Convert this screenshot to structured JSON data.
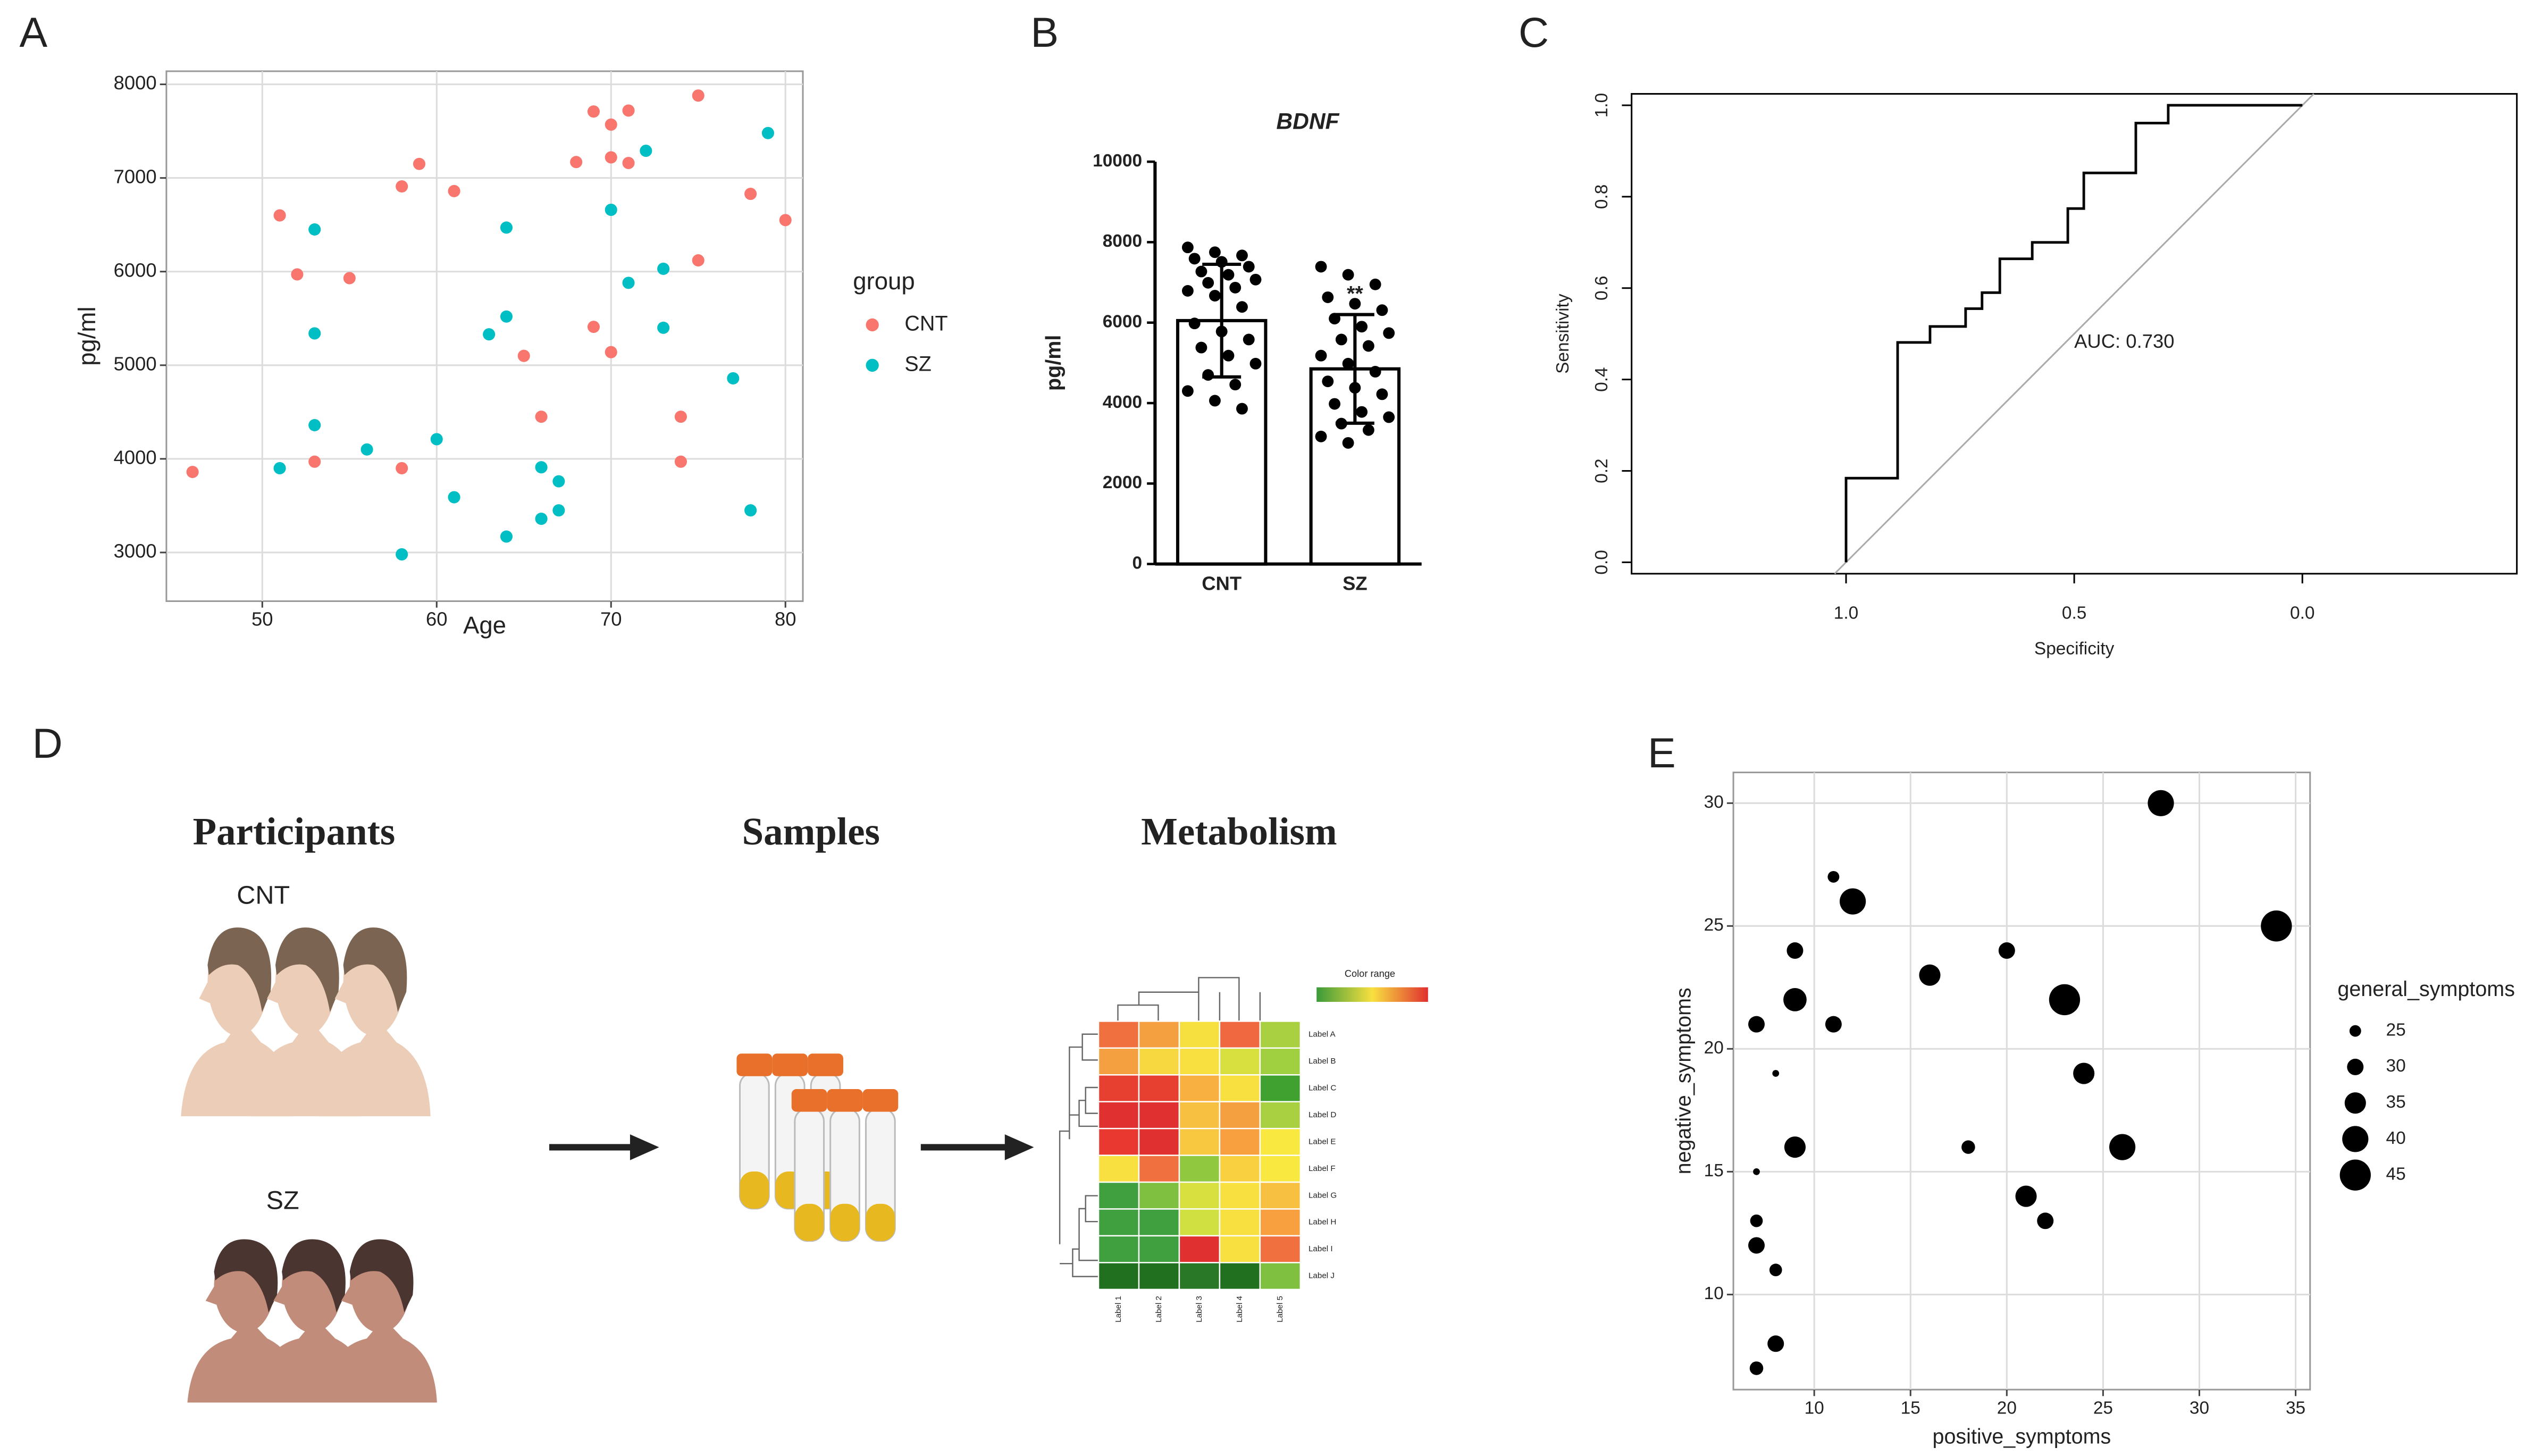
{
  "chart_data": [
    {
      "panel": "A",
      "type": "scatter",
      "xlabel": "Age",
      "ylabel": "pg/ml",
      "xlim": [
        44.5,
        81
      ],
      "ylim": [
        2480,
        8140
      ],
      "xticks": [
        50,
        60,
        70,
        80
      ],
      "yticks": [
        3000,
        4000,
        5000,
        6000,
        7000,
        8000
      ],
      "grid": true,
      "legend_title": "group",
      "series": [
        {
          "name": "CNT",
          "color": "#F8766D",
          "x": [
            46,
            51,
            52,
            53,
            55,
            58,
            58,
            59,
            61,
            65,
            66,
            68,
            69,
            69,
            70,
            70,
            70,
            71,
            71,
            74,
            74,
            75,
            75,
            78,
            80
          ],
          "y": [
            3860,
            6600,
            5970,
            3970,
            5930,
            6910,
            3900,
            7150,
            6860,
            5100,
            4450,
            7170,
            7710,
            5410,
            7570,
            7220,
            5140,
            7720,
            7160,
            4450,
            3970,
            7880,
            6120,
            6830,
            6550
          ]
        },
        {
          "name": "SZ",
          "color": "#00BFC4",
          "x": [
            51,
            53,
            53,
            53,
            56,
            58,
            60,
            61,
            63,
            64,
            64,
            64,
            66,
            66,
            67,
            67,
            70,
            71,
            72,
            73,
            73,
            77,
            78,
            79
          ],
          "y": [
            3900,
            6450,
            5340,
            4360,
            4100,
            2980,
            4210,
            3590,
            5330,
            6470,
            5520,
            3170,
            3910,
            3360,
            3760,
            3450,
            6660,
            5880,
            7290,
            6030,
            5400,
            4860,
            3450,
            7480
          ]
        }
      ]
    },
    {
      "panel": "B",
      "type": "bar",
      "title": "BDNF",
      "ylabel": "pg/ml",
      "categories": [
        "CNT",
        "SZ"
      ],
      "values": [
        6050,
        4850
      ],
      "errors": [
        1400,
        1350
      ],
      "color": "#ffffff",
      "ylim": [
        0,
        10000
      ],
      "yticks": [
        0,
        2000,
        4000,
        6000,
        8000,
        10000
      ],
      "points": [
        [
          7870,
          7750,
          7670,
          7590,
          7510,
          7390,
          7270,
          7190,
          7070,
          6990,
          6870,
          6790,
          6670,
          6390,
          5980,
          5780,
          5580,
          5380,
          5180,
          4980,
          4700,
          4460,
          4300,
          4060,
          3860
        ],
        [
          7390,
          7190,
          6950,
          6630,
          6470,
          6310,
          6100,
          5900,
          5740,
          5580,
          5420,
          5180,
          4980,
          4780,
          4540,
          4380,
          4220,
          3980,
          3780,
          3650,
          3490,
          3330,
          3170,
          3010
        ]
      ],
      "annotations": [
        {
          "text": "**",
          "category": "SZ"
        }
      ]
    },
    {
      "panel": "C",
      "type": "line",
      "xlabel": "Specificity",
      "ylabel": "Sensitivity",
      "annotation": "AUC: 0.730",
      "color": "#000000",
      "x": [
        1,
        1,
        0.887,
        0.887,
        0.816,
        0.816,
        0.738,
        0.738,
        0.702,
        0.702,
        0.663,
        0.663,
        0.592,
        0.592,
        0.514,
        0.514,
        0.479,
        0.479,
        0.365,
        0.365,
        0.294,
        0.294,
        0
      ],
      "y": [
        0,
        0.184,
        0.184,
        0.481,
        0.481,
        0.516,
        0.516,
        0.555,
        0.555,
        0.59,
        0.59,
        0.664,
        0.664,
        0.7,
        0.7,
        0.774,
        0.774,
        0.852,
        0.852,
        0.961,
        0.961,
        1,
        1
      ],
      "xlim": [
        1.47,
        -0.47
      ],
      "ylim": [
        -0.025,
        1.025
      ],
      "xticks": [
        {
          "value": 1,
          "label": "1.0"
        },
        0.5,
        {
          "value": 0,
          "label": "0.0"
        }
      ],
      "yticks": [
        {
          "value": 0,
          "label": "0.0"
        },
        0.2,
        0.4,
        0.6,
        0.8,
        {
          "value": 1,
          "label": "1.0"
        }
      ]
    },
    {
      "panel": "E",
      "type": "bubble",
      "xlabel": "positive_symptoms",
      "ylabel": "negative_symptoms",
      "legend_title": "general_symptoms",
      "color": "#000000",
      "grid": true,
      "xlim": [
        5.8,
        35.75
      ],
      "ylim": [
        6.13,
        31.25
      ],
      "xticks": [
        10,
        15,
        20,
        25,
        30,
        35
      ],
      "yticks": [
        10,
        15,
        20,
        25,
        30
      ],
      "x": [
        28,
        11,
        12,
        34,
        9,
        20,
        16,
        9,
        23,
        7,
        11,
        8,
        24,
        9,
        18,
        26,
        7,
        21,
        7,
        22,
        7,
        8,
        8,
        7
      ],
      "y": [
        30,
        27,
        26,
        25,
        24,
        24,
        23,
        22,
        22,
        21,
        21,
        19,
        19,
        16,
        16,
        16,
        15,
        14,
        13,
        13,
        12,
        11,
        8,
        7
      ],
      "sizes": [
        40,
        25,
        40,
        45,
        30,
        30,
        35,
        37,
        45,
        30,
        30,
        20,
        35,
        35,
        27,
        40,
        20,
        35,
        26,
        30,
        30,
        26,
        30,
        27
      ],
      "size_legend": [
        25,
        30,
        35,
        40,
        45
      ]
    }
  ],
  "diagram": {
    "panel": "D",
    "headings": [
      "Participants",
      "Samples",
      "Metabolism"
    ],
    "groups": [
      "CNT",
      "SZ"
    ],
    "heatmap": {
      "title": "Color range",
      "row_labels": [
        "Label A",
        "Label B",
        "Label C",
        "Label D",
        "Label E",
        "Label F",
        "Label G",
        "Label H",
        "Label I",
        "Label J"
      ],
      "col_labels": [
        "Label 1",
        "Label 2",
        "Label 3",
        "Label 4",
        "Label 5"
      ],
      "colors": [
        [
          "#f07040",
          "#f4a040",
          "#f5e040",
          "#f06840",
          "#a8d040"
        ],
        [
          "#f4a040",
          "#f8d840",
          "#f8e040",
          "#d8e040",
          "#a0d040"
        ],
        [
          "#e84030",
          "#e84030",
          "#f8b040",
          "#f8e040",
          "#40a030"
        ],
        [
          "#e03030",
          "#e03030",
          "#f8c040",
          "#f4a040",
          "#a8d040"
        ],
        [
          "#e83830",
          "#e03030",
          "#f8c840",
          "#f8a040",
          "#f8e840"
        ],
        [
          "#f8e040",
          "#f07040",
          "#90c840",
          "#f8d040",
          "#f8e840"
        ],
        [
          "#40a040",
          "#80c040",
          "#d8e040",
          "#f8e040",
          "#f8c040"
        ],
        [
          "#40a040",
          "#40a040",
          "#d0e040",
          "#f8e040",
          "#f8a040"
        ],
        [
          "#40a040",
          "#40a040",
          "#e03030",
          "#f8e040",
          "#f07040"
        ],
        [
          "#207020",
          "#207020",
          "#287828",
          "#207020",
          "#80c040"
        ]
      ]
    }
  }
}
